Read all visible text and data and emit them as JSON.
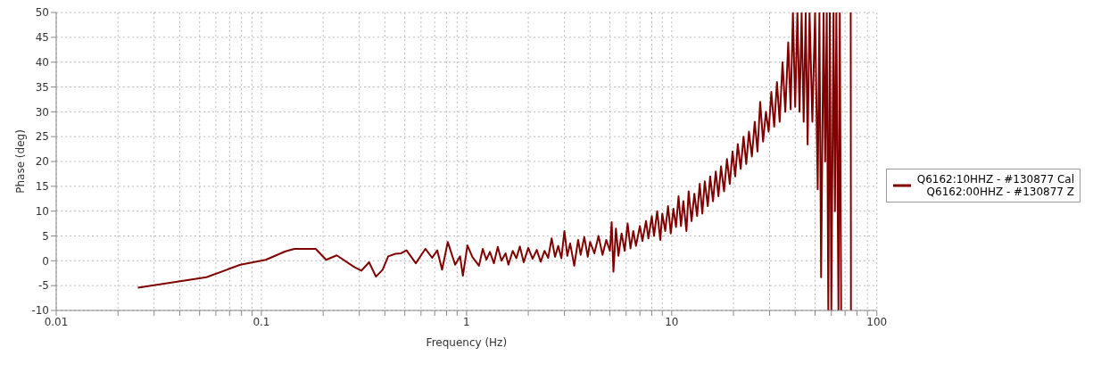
{
  "chart_data": {
    "type": "line",
    "xlabel": "Frequency (Hz)",
    "ylabel": "Phase (deg)",
    "log": "x",
    "grid": true,
    "legend": "right",
    "xlim": [
      0.01,
      100
    ],
    "ylim": [
      -10,
      50
    ],
    "xticks": [
      0.01,
      {
        "value": 0.02,
        "label": null
      },
      {
        "value": 0.03,
        "label": null
      },
      {
        "value": 0.04,
        "label": null
      },
      {
        "value": 0.05,
        "label": null
      },
      {
        "value": 0.06,
        "label": null
      },
      {
        "value": 0.07,
        "label": null
      },
      {
        "value": 0.08,
        "label": null
      },
      {
        "value": 0.09,
        "label": null
      },
      0.1,
      {
        "value": 0.2,
        "label": null
      },
      {
        "value": 0.3,
        "label": null
      },
      {
        "value": 0.4,
        "label": null
      },
      {
        "value": 0.5,
        "label": null
      },
      {
        "value": 0.6,
        "label": null
      },
      {
        "value": 0.7,
        "label": null
      },
      {
        "value": 0.8,
        "label": null
      },
      {
        "value": 0.9,
        "label": null
      },
      1,
      {
        "value": 2,
        "label": null
      },
      {
        "value": 3,
        "label": null
      },
      {
        "value": 4,
        "label": null
      },
      {
        "value": 5,
        "label": null
      },
      {
        "value": 6,
        "label": null
      },
      {
        "value": 7,
        "label": null
      },
      {
        "value": 8,
        "label": null
      },
      {
        "value": 9,
        "label": null
      },
      10,
      {
        "value": 20,
        "label": null
      },
      {
        "value": 30,
        "label": null
      },
      {
        "value": 40,
        "label": null
      },
      {
        "value": 50,
        "label": null
      },
      {
        "value": 60,
        "label": null
      },
      {
        "value": 70,
        "label": null
      },
      {
        "value": 80,
        "label": null
      },
      {
        "value": 90,
        "label": null
      },
      100
    ],
    "yticks": [
      -10,
      -5,
      0,
      5,
      10,
      15,
      20,
      25,
      30,
      35,
      40,
      45,
      50
    ],
    "series": [
      {
        "name": "Q6162:10HHZ - #130877 Cal\nQ6162:00HHZ - #130877 Z",
        "color": "#800000",
        "x": [
          0.025,
          0.054,
          0.079,
          0.105,
          0.131,
          0.145,
          0.184,
          0.207,
          0.233,
          0.285,
          0.307,
          0.335,
          0.362,
          0.39,
          0.415,
          0.45,
          0.48,
          0.51,
          0.566,
          0.63,
          0.68,
          0.72,
          0.76,
          0.81,
          0.88,
          0.93,
          0.96,
          1.01,
          1.07,
          1.15,
          1.2,
          1.25,
          1.3,
          1.36,
          1.42,
          1.48,
          1.55,
          1.6,
          1.68,
          1.75,
          1.82,
          1.9,
          2.0,
          2.1,
          2.2,
          2.3,
          2.4,
          2.5,
          2.6,
          2.7,
          2.8,
          2.9,
          3.0,
          3.1,
          3.2,
          3.35,
          3.5,
          3.6,
          3.75,
          3.9,
          4.0,
          4.2,
          4.4,
          4.6,
          4.8,
          5.0,
          5.1,
          5.2,
          5.35,
          5.5,
          5.7,
          5.9,
          6.1,
          6.3,
          6.5,
          6.7,
          7.0,
          7.2,
          7.5,
          7.7,
          8.0,
          8.2,
          8.5,
          8.8,
          9.0,
          9.3,
          9.6,
          9.9,
          10.2,
          10.5,
          10.8,
          11.1,
          11.4,
          11.8,
          12.1,
          12.5,
          12.9,
          13.3,
          13.7,
          14.1,
          14.5,
          15.0,
          15.4,
          15.9,
          16.4,
          16.9,
          17.4,
          18.0,
          18.6,
          19.2,
          19.8,
          20.4,
          21.0,
          21.7,
          22.4,
          23.1,
          23.8,
          24.6,
          25.4,
          26.2,
          27.0,
          27.9,
          28.8,
          29.7,
          30.6,
          31.6,
          32.6,
          33.6,
          34.7,
          35.8,
          37.0,
          38.0,
          39.0,
          40.0,
          41.0,
          42.0,
          43.0,
          44.0,
          45.0,
          46.0,
          47.0,
          48.5,
          50.0,
          51.5,
          52.5,
          53.5,
          55.0,
          56.0,
          57.0,
          58.0,
          59.0,
          60.0,
          61.5,
          62.5,
          63.5,
          65.0,
          66.0,
          67.0,
          70.0,
          74.6,
          74.8
        ],
        "values": [
          -5.4,
          -3.3,
          -0.8,
          0.2,
          1.9,
          2.4,
          2.4,
          0.2,
          1.1,
          -1.3,
          -2.0,
          -0.3,
          -3.2,
          -1.8,
          0.9,
          1.4,
          1.5,
          2.1,
          -0.5,
          2.4,
          0.6,
          2.1,
          -1.8,
          3.8,
          -0.8,
          0.9,
          -3.0,
          3.1,
          0.7,
          -1.0,
          2.4,
          0.2,
          1.8,
          -0.5,
          2.8,
          0.0,
          1.5,
          -0.8,
          2.0,
          0.5,
          2.9,
          -0.3,
          2.6,
          0.4,
          2.2,
          -0.2,
          2.0,
          0.6,
          4.5,
          0.8,
          3.0,
          0.5,
          6.0,
          1.0,
          3.5,
          -1.0,
          4.2,
          1.2,
          4.8,
          0.8,
          3.8,
          1.5,
          5.0,
          1.2,
          4.2,
          2.0,
          7.8,
          -2.2,
          6.5,
          1.0,
          5.5,
          2.0,
          7.5,
          2.5,
          6.0,
          3.0,
          7.0,
          4.0,
          8.0,
          4.5,
          9.0,
          5.0,
          10.0,
          4.2,
          9.5,
          6.0,
          11.0,
          5.5,
          10.5,
          6.8,
          13.0,
          7.0,
          12.0,
          6.0,
          14.0,
          8.0,
          13.5,
          9.0,
          15.5,
          9.5,
          16.0,
          11.0,
          17.0,
          12.0,
          18.0,
          13.0,
          19.0,
          14.0,
          20.5,
          15.5,
          22.0,
          17.0,
          23.5,
          18.5,
          25.0,
          19.5,
          26.0,
          21.0,
          28.0,
          22.0,
          32.0,
          24.0,
          30.0,
          26.0,
          34.0,
          27.0,
          36.0,
          28.0,
          40.0,
          30.0,
          44.0,
          30.5,
          50,
          31.0,
          50,
          30.0,
          50,
          28.0,
          50,
          23.4,
          50,
          28.0,
          50,
          14.4,
          50,
          -3.3,
          50,
          20.0,
          50,
          -10,
          50,
          -10,
          50,
          10.0,
          50,
          -10,
          50,
          -10,
          null,
          50,
          -10
        ]
      }
    ]
  }
}
